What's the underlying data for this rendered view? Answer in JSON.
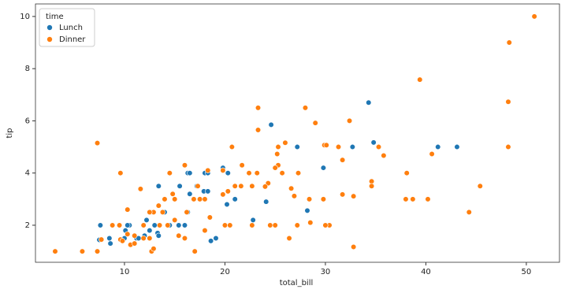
{
  "chart_data": {
    "type": "scatter",
    "x_label": "total_bill",
    "y_label": "tip",
    "legend_title": "time",
    "legend": "upper left",
    "xlim": [
      1.14,
      53.3
    ],
    "ylim": [
      0.58,
      10.48
    ],
    "xticks": [
      10,
      20,
      30,
      40,
      50
    ],
    "yticks": [
      2,
      4,
      6,
      8,
      10
    ],
    "series": [
      {
        "name": "Lunch",
        "color": "#1f77b4",
        "x": [
          34.3,
          24.6,
          34.8,
          41.2,
          43.1,
          32.7,
          27.2,
          29.8,
          16.3,
          16.5,
          18.0,
          18.3,
          19.8,
          20.3,
          17.9,
          15.5,
          13.4,
          13.0,
          10.5,
          10.1,
          8.5,
          8.6,
          7.6,
          7.5,
          10.0,
          11.2,
          12.0,
          12.5,
          12.2,
          12.6,
          13.3,
          13.4,
          14.0,
          14.5,
          15.4,
          16.0,
          16.3,
          16.5,
          17.2,
          18.3,
          18.6,
          19.1,
          20.2,
          21.0,
          22.8,
          24.1,
          28.2,
          10.3,
          11.4
        ],
        "values": [
          6.7,
          5.85,
          5.17,
          5.0,
          5.0,
          5.0,
          5.0,
          4.2,
          4.0,
          4.0,
          4.0,
          4.0,
          4.2,
          4.0,
          3.3,
          3.5,
          3.5,
          2.0,
          2.0,
          1.8,
          1.5,
          1.3,
          2.0,
          1.44,
          1.5,
          1.5,
          1.6,
          1.8,
          2.2,
          2.5,
          1.7,
          1.6,
          2.5,
          2.0,
          2.0,
          2.0,
          2.5,
          3.2,
          3.5,
          3.3,
          1.4,
          1.5,
          2.8,
          3.0,
          2.2,
          2.9,
          2.56,
          2.0,
          1.5
        ]
      },
      {
        "name": "Dinner",
        "color": "#ff7f0e",
        "x": [
          50.8,
          48.3,
          39.4,
          48.2,
          23.3,
          28.0,
          32.4,
          29.0,
          23.3,
          7.3,
          48.2,
          25.3,
          26.0,
          35.3,
          31.3,
          20.7,
          25.2,
          29.9,
          30.1,
          40.6,
          35.8,
          31.7,
          25.3,
          25.0,
          16.0,
          14.5,
          9.6,
          22.4,
          23.2,
          25.7,
          27.3,
          38.1,
          34.6,
          34.6,
          45.4,
          31.7,
          32.8,
          40.2,
          38.7,
          38.0,
          29.8,
          28.4,
          26.9,
          26.6,
          24.3,
          24.0,
          22.7,
          21.6,
          21.0,
          19.8,
          18.0,
          17.5,
          16.9,
          15.0,
          14.8,
          14.0,
          13.4,
          12.9,
          11.6,
          10.3,
          9.5,
          8.8,
          3.1,
          5.8,
          7.3,
          7.7,
          9.6,
          9.8,
          10.3,
          10.6,
          11.0,
          11.9,
          12.5,
          12.7,
          12.9,
          13.5,
          14.3,
          15.4,
          16.0,
          17.0,
          18.0,
          18.5,
          20.0,
          20.5,
          22.7,
          24.5,
          25.0,
          26.4,
          27.2,
          28.5,
          30.4,
          30.0,
          32.8,
          44.3,
          20.3,
          21.7,
          19.8,
          18.3,
          17.3,
          16.2,
          15.0,
          13.8,
          12.5,
          11.9,
          11.0
        ],
        "values": [
          10,
          9,
          7.58,
          6.73,
          6.5,
          6.5,
          6.0,
          5.92,
          5.65,
          5.15,
          5.0,
          5.0,
          5.16,
          5.0,
          5.0,
          5.0,
          4.73,
          5.07,
          5.07,
          4.73,
          4.67,
          4.5,
          4.3,
          4.2,
          4.3,
          4.0,
          4.0,
          4.0,
          4.0,
          4.0,
          4.0,
          4.0,
          3.68,
          3.5,
          3.5,
          3.18,
          3.11,
          3.0,
          3.0,
          3.0,
          3.0,
          3.0,
          3.12,
          3.41,
          3.61,
          3.48,
          3.5,
          3.5,
          3.5,
          3.18,
          3.0,
          3.0,
          3.0,
          3.0,
          3.2,
          3.0,
          2.75,
          2.5,
          3.39,
          2.6,
          2.0,
          2.0,
          1.0,
          1.0,
          1.0,
          1.45,
          1.45,
          1.4,
          1.66,
          1.25,
          1.6,
          1.5,
          1.5,
          1.0,
          1.1,
          2.0,
          2.0,
          1.6,
          1.5,
          1.0,
          1.8,
          2.3,
          2.0,
          2.0,
          2.0,
          2.0,
          2.0,
          1.5,
          2.0,
          2.1,
          2.0,
          2.0,
          1.17,
          2.5,
          3.3,
          4.3,
          4.1,
          4.1,
          3.5,
          2.5,
          2.2,
          2.5,
          2.5,
          2.0,
          1.3
        ]
      }
    ]
  }
}
